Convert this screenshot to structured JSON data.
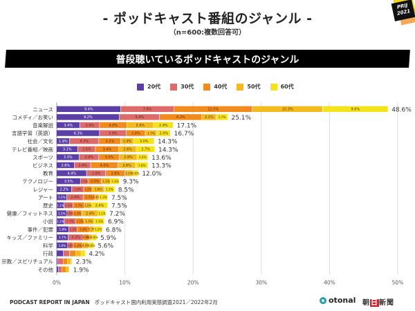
{
  "header": {
    "title": "- ポッドキャスト番組のジャンル -",
    "subtitle": "（n=600:複数回答可）",
    "badge_line1": "PRIJ",
    "badge_line2": "2021",
    "banner": "普段聴いているポッドキャストのジャンル"
  },
  "colors": {
    "20代": "#5b3fa6",
    "30代": "#de6b6b",
    "40代": "#f28b1c",
    "50代": "#f2bc1f",
    "60代": "#f5e31a"
  },
  "chart_data": {
    "type": "bar",
    "orientation": "horizontal",
    "stacked": true,
    "title": "普段聴いているポッドキャストのジャンル",
    "xlabel": "",
    "ylabel": "",
    "xlim": [
      0,
      50
    ],
    "xticks": [
      "0%",
      "10%",
      "20%",
      "30%",
      "40%",
      "50%"
    ],
    "grid": true,
    "legend_position": "top",
    "categories": [
      "ニュース",
      "コメディ／お笑い",
      "音楽解説",
      "言語学習（英語）",
      "社会／文化",
      "テレビ番組／映画",
      "スポーツ",
      "ビジネス",
      "教育",
      "テクノロジー",
      "レジャー",
      "アート",
      "歴史",
      "健康／フィットネス",
      "小説",
      "事件／犯罪",
      "キッズ／ファミリー",
      "科学",
      "行政",
      "宗教／スピリチュアル",
      "その他"
    ],
    "totals": [
      "48.6%",
      "25.1%",
      "17.1%",
      "16.7%",
      "14.3%",
      "14.3%",
      "13.6%",
      "13.3%",
      "12.0%",
      "9.3%",
      "8.5%",
      "7.5%",
      "7.5%",
      "7.2%",
      "6.9%",
      "6.8%",
      "5.9%",
      "5.6%",
      "4.2%",
      "2.3%",
      "1.9%"
    ],
    "series": [
      {
        "name": "20代",
        "values": [
          9.4,
          9.2,
          3.4,
          6.3,
          1.9,
          3.1,
          3.3,
          2.6,
          4.4,
          3.5,
          2.2,
          1.5,
          1.1,
          1.5,
          1.1,
          1.8,
          1.7,
          1.6,
          1.0,
          0.2,
          0.3
        ]
      },
      {
        "name": "30代",
        "values": [
          7.8,
          5.9,
          2.9,
          3.9,
          4.3,
          2.6,
          2.9,
          2.4,
          2.8,
          1.1,
          1.8,
          2.4,
          1.3,
          0.9,
          1.7,
          1.2,
          2.2,
          0.8,
          0.9,
          0.8,
          0.5
        ]
      },
      {
        "name": "40代",
        "values": [
          11.5,
          6.2,
          4.0,
          2.8,
          3.2,
          3.4,
          3.0,
          4.0,
          2.8,
          2.0,
          1.2,
          1.7,
          1.7,
          1.3,
          1.2,
          1.8,
          0.9,
          1.4,
          0.9,
          0.6,
          0.6
        ]
      },
      {
        "name": "50代",
        "values": [
          10.3,
          2.1,
          3.9,
          1.7,
          1.9,
          2.6,
          2.6,
          2.6,
          1.2,
          1.3,
          1.8,
          0.6,
          1.0,
          2.4,
          1.5,
          0.7,
          0.3,
          0.9,
          0.8,
          0.5,
          0.4
        ]
      },
      {
        "name": "60代",
        "values": [
          9.6,
          1.7,
          2.9,
          2.0,
          3.0,
          2.7,
          1.6,
          1.8,
          0.8,
          1.3,
          1.5,
          1.3,
          2.4,
          1.1,
          1.5,
          1.2,
          0.8,
          0.8,
          0.6,
          0.2,
          0.1
        ]
      }
    ],
    "segment_labels_hidden_rows": [
      "行政",
      "宗教／スピリチュアル",
      "その他"
    ]
  },
  "legend": [
    "20代",
    "30代",
    "40代",
    "50代",
    "60代"
  ],
  "footer": {
    "report": "PODCAST REPORT IN JAPAN",
    "survey": "ポッドキャスト国内利用実態調査2021／2022年2月",
    "logo_otonal": "otonal",
    "logo_asahi_1": "朝",
    "logo_asahi_2": "日",
    "logo_asahi_3": "新聞"
  }
}
